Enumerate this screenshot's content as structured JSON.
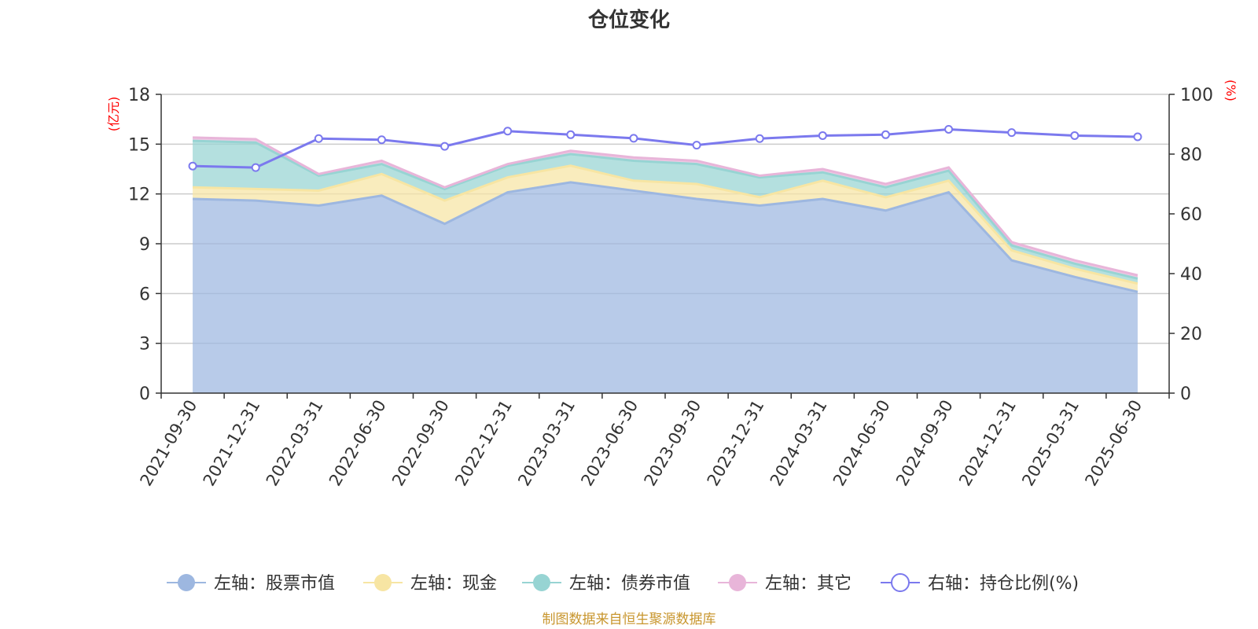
{
  "chart_data": {
    "type": "area",
    "title": "仓位变化",
    "left_axis_unit": "(亿元)",
    "right_axis_unit": "(%)",
    "unit_color": "#ff0000",
    "x": [
      "2021-09-30",
      "2021-12-31",
      "2022-03-31",
      "2022-06-30",
      "2022-09-30",
      "2022-12-31",
      "2023-03-31",
      "2023-06-30",
      "2023-09-30",
      "2023-12-31",
      "2024-03-31",
      "2024-06-30",
      "2024-09-30",
      "2024-12-31",
      "2025-03-31",
      "2025-06-30"
    ],
    "left_ylim": [
      0,
      18
    ],
    "left_ticks": [
      "0",
      "3",
      "6",
      "9",
      "12",
      "15",
      "18"
    ],
    "right_ylim": [
      0,
      100
    ],
    "right_ticks": [
      "0",
      "20",
      "40",
      "60",
      "80",
      "100"
    ],
    "grid": true,
    "stacked": true,
    "series": [
      {
        "name": "左轴：股票市值",
        "axis": "left",
        "color": "#9db7e0",
        "values": [
          11.7,
          11.6,
          11.3,
          11.9,
          10.2,
          12.1,
          12.7,
          12.2,
          11.7,
          11.3,
          11.7,
          11.0,
          12.1,
          8.0,
          7.0,
          6.1
        ]
      },
      {
        "name": "左轴：现金",
        "axis": "left",
        "color": "#f7e5a3",
        "values": [
          0.7,
          0.7,
          0.9,
          1.3,
          1.4,
          0.9,
          1.0,
          0.6,
          0.9,
          0.5,
          1.1,
          0.8,
          0.7,
          0.6,
          0.5,
          0.5
        ]
      },
      {
        "name": "左轴：债券市值",
        "axis": "left",
        "color": "#97d4d3",
        "values": [
          2.8,
          2.8,
          0.9,
          0.6,
          0.7,
          0.7,
          0.7,
          1.2,
          1.2,
          1.2,
          0.5,
          0.6,
          0.6,
          0.3,
          0.3,
          0.3
        ]
      },
      {
        "name": "左轴：其它",
        "axis": "left",
        "color": "#e8b5d9",
        "values": [
          0.2,
          0.2,
          0.1,
          0.2,
          0.1,
          0.1,
          0.2,
          0.2,
          0.2,
          0.1,
          0.2,
          0.2,
          0.2,
          0.2,
          0.2,
          0.2
        ]
      },
      {
        "name": "右轴：持仓比例(%)",
        "axis": "right",
        "type": "line",
        "color": "#7b79ee",
        "values": [
          76.0,
          75.5,
          85.2,
          84.8,
          82.6,
          87.7,
          86.5,
          85.3,
          83.0,
          85.2,
          86.2,
          86.5,
          88.3,
          87.2,
          86.2,
          85.8
        ]
      }
    ]
  },
  "footer": {
    "source_text": "制图数据来自恒生聚源数据库",
    "source_color": "#c8962e"
  }
}
